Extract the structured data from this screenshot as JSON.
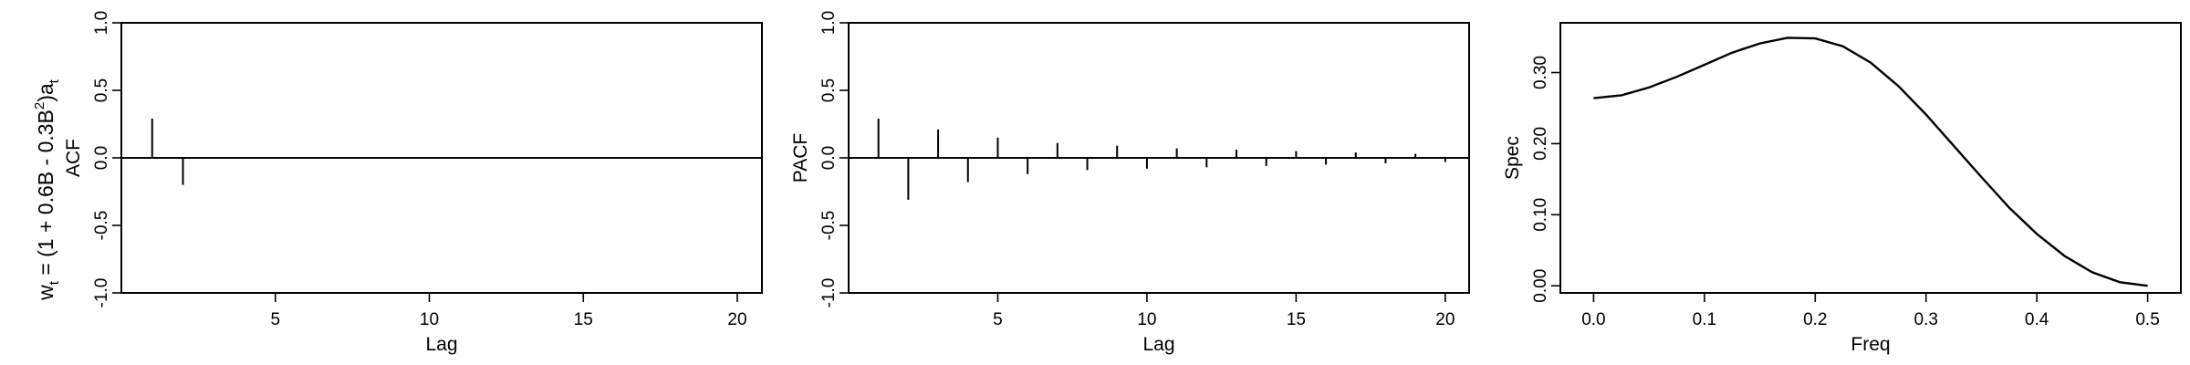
{
  "model_label": {
    "prefix": "w",
    "prefix_sub": "t",
    "middle": " = (1 + 0.6B - 0.3B",
    "power": "2",
    "suffix": ")a",
    "suffix_sub": "t"
  },
  "chart_data": [
    {
      "type": "bar",
      "subtype": "spike",
      "ylabel": "ACF",
      "xlabel": "Lag",
      "xlim": [
        0,
        20.8
      ],
      "ylim": [
        -1.0,
        1.0
      ],
      "xticks": [
        "5",
        "10",
        "15",
        "20"
      ],
      "yticks": [
        "-1.0",
        "-0.5",
        "0.0",
        "0.5",
        "1.0"
      ],
      "x": [
        1,
        2
      ],
      "values": [
        0.29,
        -0.2
      ],
      "zero_line": true
    },
    {
      "type": "bar",
      "subtype": "spike",
      "ylabel": "PACF",
      "xlabel": "Lag",
      "xlim": [
        0,
        20.8
      ],
      "ylim": [
        -1.0,
        1.0
      ],
      "xticks": [
        "5",
        "10",
        "15",
        "20"
      ],
      "yticks": [
        "-1.0",
        "-0.5",
        "0.0",
        "0.5",
        "1.0"
      ],
      "x": [
        1,
        2,
        3,
        4,
        5,
        6,
        7,
        8,
        9,
        10,
        11,
        12,
        13,
        14,
        15,
        16,
        17,
        18,
        19,
        20
      ],
      "values": [
        0.29,
        -0.31,
        0.21,
        -0.18,
        0.15,
        -0.12,
        0.11,
        -0.09,
        0.09,
        -0.08,
        0.07,
        -0.07,
        0.06,
        -0.06,
        0.05,
        -0.05,
        0.04,
        -0.04,
        0.03,
        -0.03
      ],
      "zero_line": true
    },
    {
      "type": "line",
      "ylabel": "Spec",
      "xlabel": "Freq",
      "xlim": [
        -0.03,
        0.53
      ],
      "ylim": [
        -0.01,
        0.37
      ],
      "xticks": [
        "0.0",
        "0.1",
        "0.2",
        "0.3",
        "0.4",
        "0.5"
      ],
      "yticks": [
        "0.00",
        "0.10",
        "0.20",
        "0.30"
      ],
      "x": [
        0.0,
        0.025,
        0.05,
        0.075,
        0.1,
        0.125,
        0.15,
        0.175,
        0.2,
        0.225,
        0.25,
        0.275,
        0.3,
        0.325,
        0.35,
        0.375,
        0.4,
        0.425,
        0.45,
        0.475,
        0.5
      ],
      "values": [
        0.264,
        0.268,
        0.279,
        0.294,
        0.311,
        0.328,
        0.341,
        0.349,
        0.348,
        0.337,
        0.314,
        0.281,
        0.241,
        0.197,
        0.153,
        0.11,
        0.073,
        0.042,
        0.019,
        0.005,
        0.0
      ]
    }
  ]
}
